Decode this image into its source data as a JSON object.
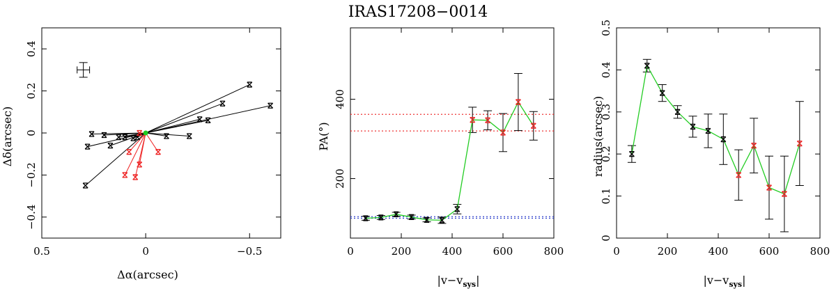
{
  "title": "IRAS17208−0014",
  "colors": {
    "black": "#000000",
    "red": "#ee2222",
    "green": "#22cc22",
    "red_dotted": "#ee3333",
    "blue_dotted": "#3344cc"
  },
  "chart_data": [
    {
      "type": "scatter",
      "panel": "left",
      "xlabel": "Δα(arcsec)",
      "ylabel": "Δδ(arcsec)",
      "xlim": [
        0.5,
        -0.65
      ],
      "ylim": [
        -0.5,
        0.5
      ],
      "xticks": [
        0.5,
        0,
        -0.5
      ],
      "xtick_labels": [
        "0.5",
        "0",
        "−0.5"
      ],
      "yticks": [
        -0.4,
        -0.2,
        0,
        0.2,
        0.4
      ],
      "ytick_labels": [
        "−0.4",
        "−0.2",
        "0",
        "0.2",
        "0.4"
      ],
      "origin": [
        0,
        0
      ],
      "error_cross": {
        "x": 0.3,
        "y": 0.3,
        "dx": 0.03,
        "dy": 0.035
      },
      "black_points": [
        [
          -0.5,
          0.23
        ],
        [
          -0.6,
          0.13
        ],
        [
          -0.37,
          0.14
        ],
        [
          -0.26,
          0.065
        ],
        [
          -0.3,
          0.06
        ],
        [
          -0.21,
          -0.015
        ],
        [
          -0.1,
          -0.015
        ],
        [
          0.04,
          -0.02
        ],
        [
          0.06,
          -0.025
        ],
        [
          0.1,
          -0.02
        ],
        [
          0.13,
          -0.02
        ],
        [
          0.2,
          -0.01
        ],
        [
          0.26,
          -0.005
        ],
        [
          0.17,
          -0.06
        ],
        [
          0.28,
          -0.065
        ],
        [
          0.29,
          -0.25
        ]
      ],
      "red_points": [
        [
          0.03,
          0.0
        ],
        [
          0.08,
          -0.09
        ],
        [
          -0.06,
          -0.09
        ],
        [
          0.03,
          -0.15
        ],
        [
          0.05,
          -0.21
        ],
        [
          0.1,
          -0.2
        ]
      ]
    },
    {
      "type": "line",
      "panel": "middle",
      "xlabel": "|v−v",
      "xlabel_sub": "sys",
      "xlabel_end": "|",
      "ylabel": "PA(°)",
      "xlim": [
        0,
        800
      ],
      "ylim": [
        50,
        580
      ],
      "xticks": [
        0,
        200,
        400,
        600,
        800
      ],
      "yticks": [
        200,
        400
      ],
      "x": [
        60,
        120,
        180,
        240,
        300,
        360,
        420,
        480,
        540,
        600,
        660,
        720
      ],
      "y": [
        100,
        102,
        110,
        103,
        96,
        95,
        123,
        348,
        347,
        316,
        393,
        333
      ],
      "yerr": [
        5,
        5,
        5,
        5,
        5,
        8,
        12,
        32,
        24,
        48,
        72,
        36
      ],
      "marker_colors": [
        "black",
        "black",
        "black",
        "black",
        "black",
        "black",
        "black",
        "red",
        "red",
        "red",
        "red",
        "red"
      ],
      "hlines_red": [
        320,
        362
      ],
      "hlines_blue": [
        100,
        104
      ]
    },
    {
      "type": "line",
      "panel": "right",
      "xlabel": "|v−v",
      "xlabel_sub": "sys",
      "xlabel_end": "|",
      "ylabel": "radius(arcsec)",
      "xlim": [
        0,
        800
      ],
      "ylim": [
        0,
        0.5
      ],
      "xticks": [
        0,
        200,
        400,
        600,
        800
      ],
      "yticks": [
        0,
        0.1,
        0.2,
        0.3,
        0.4,
        0.5
      ],
      "ytick_labels": [
        "0",
        "0.1",
        "0.2",
        "0.3",
        "0.4",
        "0.5"
      ],
      "x": [
        60,
        120,
        180,
        240,
        300,
        360,
        420,
        480,
        540,
        600,
        660,
        720
      ],
      "y": [
        0.2,
        0.41,
        0.345,
        0.3,
        0.265,
        0.255,
        0.235,
        0.15,
        0.22,
        0.12,
        0.105,
        0.225
      ],
      "yerr": [
        0.02,
        0.015,
        0.02,
        0.015,
        0.025,
        0.04,
        0.06,
        0.06,
        0.065,
        0.075,
        0.09,
        0.1
      ],
      "marker_colors": [
        "black",
        "black",
        "black",
        "black",
        "black",
        "black",
        "black",
        "red",
        "red",
        "red",
        "red",
        "red"
      ]
    }
  ]
}
